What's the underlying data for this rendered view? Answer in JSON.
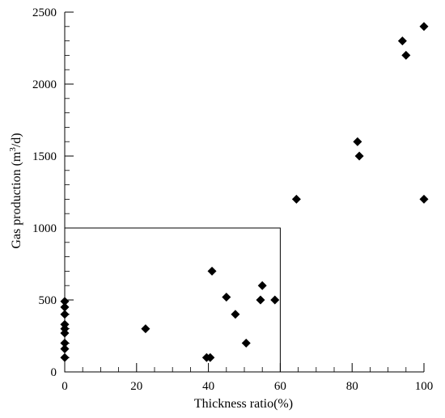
{
  "chart_data": {
    "type": "scatter",
    "title": "",
    "xlabel": "Thickness ratio(%)",
    "ylabel_prefix": "Gas production (m",
    "ylabel_sup": "3",
    "ylabel_suffix": "/d)",
    "xlim": [
      0,
      100
    ],
    "ylim": [
      0,
      2500
    ],
    "xticks": [
      0,
      20,
      40,
      60,
      80,
      100
    ],
    "yticks": [
      0,
      500,
      1000,
      1500,
      2000,
      2500
    ],
    "x_minor_step": 5,
    "y_minor_step": 100,
    "marker": "diamond",
    "marker_color": "#000000",
    "grid": false,
    "legend": "none",
    "annotation_box": {
      "x": [
        0,
        60
      ],
      "y": [
        0,
        1000
      ]
    },
    "points": [
      {
        "x": 0,
        "y": 100
      },
      {
        "x": 0,
        "y": 160
      },
      {
        "x": 0,
        "y": 200
      },
      {
        "x": 0,
        "y": 270
      },
      {
        "x": 0,
        "y": 300
      },
      {
        "x": 0,
        "y": 330
      },
      {
        "x": 0,
        "y": 400
      },
      {
        "x": 0,
        "y": 450
      },
      {
        "x": 0,
        "y": 490
      },
      {
        "x": 22.5,
        "y": 300
      },
      {
        "x": 39.5,
        "y": 100
      },
      {
        "x": 40.5,
        "y": 100
      },
      {
        "x": 41,
        "y": 700
      },
      {
        "x": 45,
        "y": 520
      },
      {
        "x": 47.5,
        "y": 400
      },
      {
        "x": 50.5,
        "y": 200
      },
      {
        "x": 54.5,
        "y": 500
      },
      {
        "x": 55,
        "y": 600
      },
      {
        "x": 58.5,
        "y": 500
      },
      {
        "x": 64.5,
        "y": 1200
      },
      {
        "x": 81.5,
        "y": 1600
      },
      {
        "x": 82,
        "y": 1500
      },
      {
        "x": 94,
        "y": 2300
      },
      {
        "x": 95,
        "y": 2200
      },
      {
        "x": 100,
        "y": 2400
      },
      {
        "x": 100,
        "y": 1200
      }
    ]
  }
}
